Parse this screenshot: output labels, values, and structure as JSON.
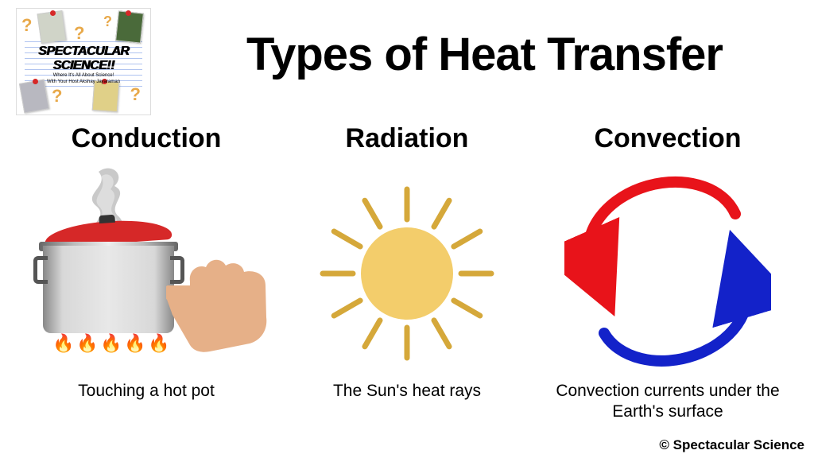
{
  "logo": {
    "title": "SPECTACULAR SCIENCE!!",
    "subtitle": "Where It's All About Science!",
    "host_line": "With Your Host Akshay Jayaraman",
    "question_color": "#e8a94a",
    "pin_color": "#d62828"
  },
  "title": "Types of Heat Transfer",
  "columns": [
    {
      "heading": "Conduction",
      "caption": "Touching a hot pot",
      "pot": {
        "lid_color": "#d62828",
        "body_gradient": [
          "#888888",
          "#d8d8d8",
          "#e8e8e8"
        ],
        "steam_color": "#c9c9c9",
        "flame_outer": "#e8a22a",
        "flame_inner": "#f6e27a",
        "hand_color": "#e6b088"
      }
    },
    {
      "heading": "Radiation",
      "caption": "The Sun's heat rays",
      "sun": {
        "disc_color": "#f3cd6b",
        "ray_color": "#d5a83a",
        "ray_count": 12,
        "ray_length": 38,
        "ray_width": 7,
        "disc_radius": 58
      }
    },
    {
      "heading": "Convection",
      "caption": "Convection currents under the Earth's surface",
      "arrows": {
        "top_color": "#e8131a",
        "bottom_color": "#1322c9",
        "stroke_width": 14
      }
    }
  ],
  "copyright": "© Spectacular Science",
  "typography": {
    "title_fontsize": 58,
    "heading_fontsize": 34,
    "caption_fontsize": 21,
    "title_weight": 900,
    "text_color": "#000000",
    "background": "#ffffff"
  }
}
